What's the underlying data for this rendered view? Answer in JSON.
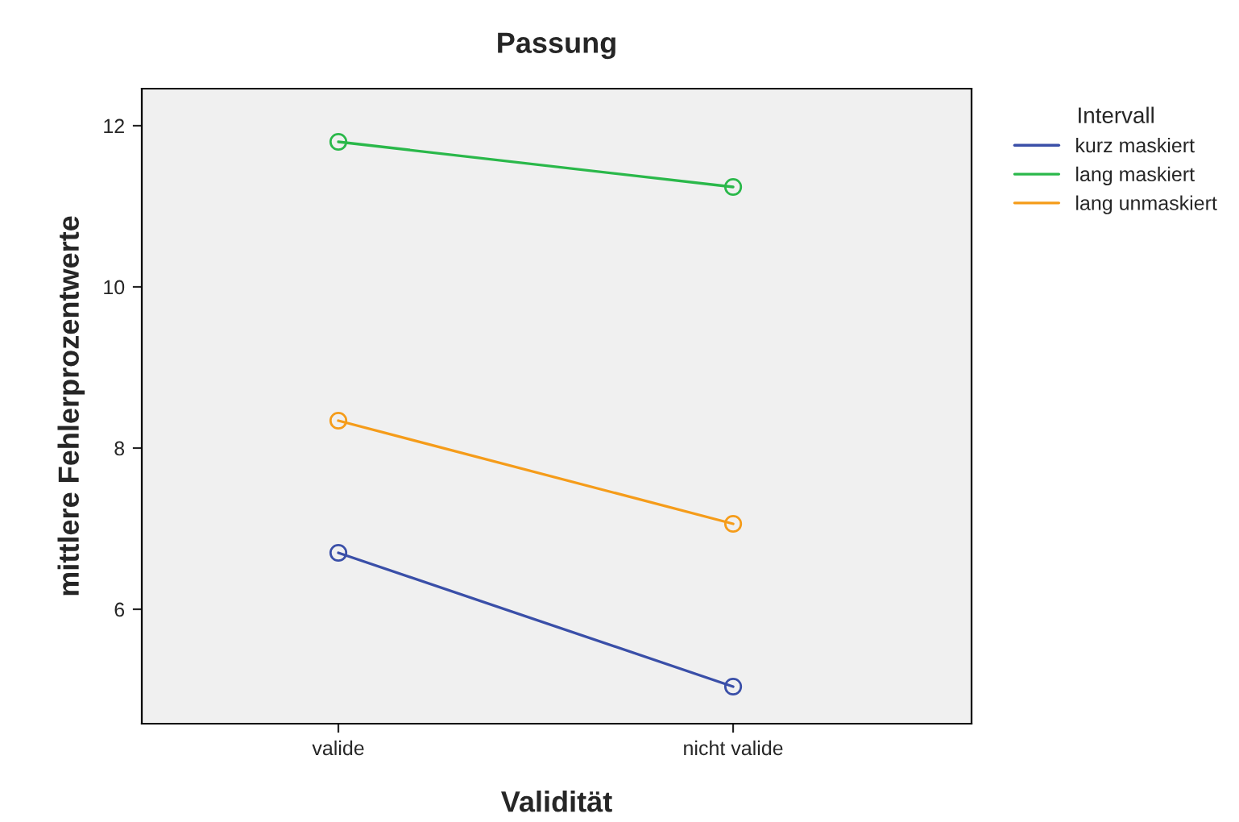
{
  "chart_data": {
    "type": "line",
    "title": "Passung",
    "xlabel": "Validität",
    "ylabel": "mittlere Fehlerprozentwerte",
    "legend_title": "Intervall",
    "categories": [
      "valide",
      "nicht valide"
    ],
    "series": [
      {
        "name": "kurz maskiert",
        "color": "#3a4fa8",
        "values": [
          6.7,
          5.04
        ]
      },
      {
        "name": "lang maskiert",
        "color": "#2ab84a",
        "values": [
          11.8,
          11.24
        ]
      },
      {
        "name": "lang unmaskiert",
        "color": "#f59c1a",
        "values": [
          8.34,
          7.06
        ]
      }
    ],
    "ylim": [
      4.58,
      12.46
    ],
    "yticks": [
      6,
      8,
      10,
      12
    ],
    "grid": false,
    "legend": "top right",
    "marker": "circle",
    "line_style": "solid"
  }
}
